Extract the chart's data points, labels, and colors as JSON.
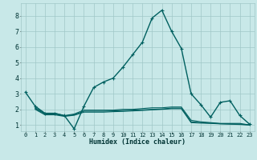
{
  "title": "",
  "xlabel": "Humidex (Indice chaleur)",
  "ylabel": "",
  "bg_color": "#c8e8e8",
  "grid_color": "#a0c8c8",
  "line_color": "#006060",
  "marker_color": "#006060",
  "xlim": [
    -0.5,
    23.5
  ],
  "ylim": [
    0.6,
    8.8
  ],
  "xticks": [
    0,
    1,
    2,
    3,
    4,
    5,
    6,
    7,
    8,
    9,
    10,
    11,
    12,
    13,
    14,
    15,
    16,
    17,
    18,
    19,
    20,
    21,
    22,
    23
  ],
  "yticks": [
    1,
    2,
    3,
    4,
    5,
    6,
    7,
    8
  ],
  "curves": [
    {
      "x": [
        0,
        1,
        2,
        3,
        4,
        5,
        6,
        7,
        8,
        9,
        10,
        11,
        12,
        13,
        14,
        15,
        16,
        17,
        18,
        19,
        20,
        21,
        22,
        23
      ],
      "y": [
        3.1,
        2.2,
        1.75,
        1.75,
        1.6,
        0.75,
        2.2,
        3.4,
        3.75,
        4.0,
        4.7,
        5.5,
        6.3,
        7.85,
        8.35,
        7.0,
        5.9,
        3.0,
        2.3,
        1.5,
        2.45,
        2.55,
        1.6,
        1.05
      ],
      "markers": true,
      "lw": 1.0
    },
    {
      "x": [
        1,
        2,
        3,
        4,
        5,
        6,
        7,
        8,
        9,
        10,
        11,
        12,
        13,
        14,
        15,
        16,
        17,
        18,
        19,
        20,
        21,
        22,
        23
      ],
      "y": [
        2.1,
        1.75,
        1.75,
        1.6,
        1.7,
        1.95,
        1.95,
        1.95,
        1.95,
        2.0,
        2.0,
        2.05,
        2.1,
        2.1,
        2.15,
        2.15,
        1.3,
        1.2,
        1.15,
        1.1,
        1.1,
        1.1,
        1.0
      ],
      "markers": false,
      "lw": 0.8
    },
    {
      "x": [
        1,
        2,
        3,
        4,
        5,
        6,
        7,
        8,
        9,
        10,
        11,
        12,
        13,
        14,
        15,
        16,
        17,
        18,
        19,
        20,
        21,
        22,
        23
      ],
      "y": [
        2.05,
        1.7,
        1.7,
        1.58,
        1.65,
        1.88,
        1.88,
        1.88,
        1.9,
        1.92,
        1.95,
        1.97,
        2.0,
        2.02,
        2.08,
        2.08,
        1.2,
        1.15,
        1.12,
        1.08,
        1.07,
        1.05,
        1.0
      ],
      "markers": false,
      "lw": 0.8
    },
    {
      "x": [
        1,
        2,
        3,
        4,
        5,
        6,
        7,
        8,
        9,
        10,
        11,
        12,
        13,
        14,
        15,
        16,
        17,
        18,
        19,
        20,
        21,
        22,
        23
      ],
      "y": [
        2.0,
        1.65,
        1.65,
        1.55,
        1.62,
        1.82,
        1.82,
        1.82,
        1.85,
        1.87,
        1.9,
        1.93,
        1.97,
        2.0,
        2.04,
        2.04,
        1.15,
        1.12,
        1.1,
        1.07,
        1.05,
        1.03,
        1.0
      ],
      "markers": false,
      "lw": 0.8
    }
  ]
}
